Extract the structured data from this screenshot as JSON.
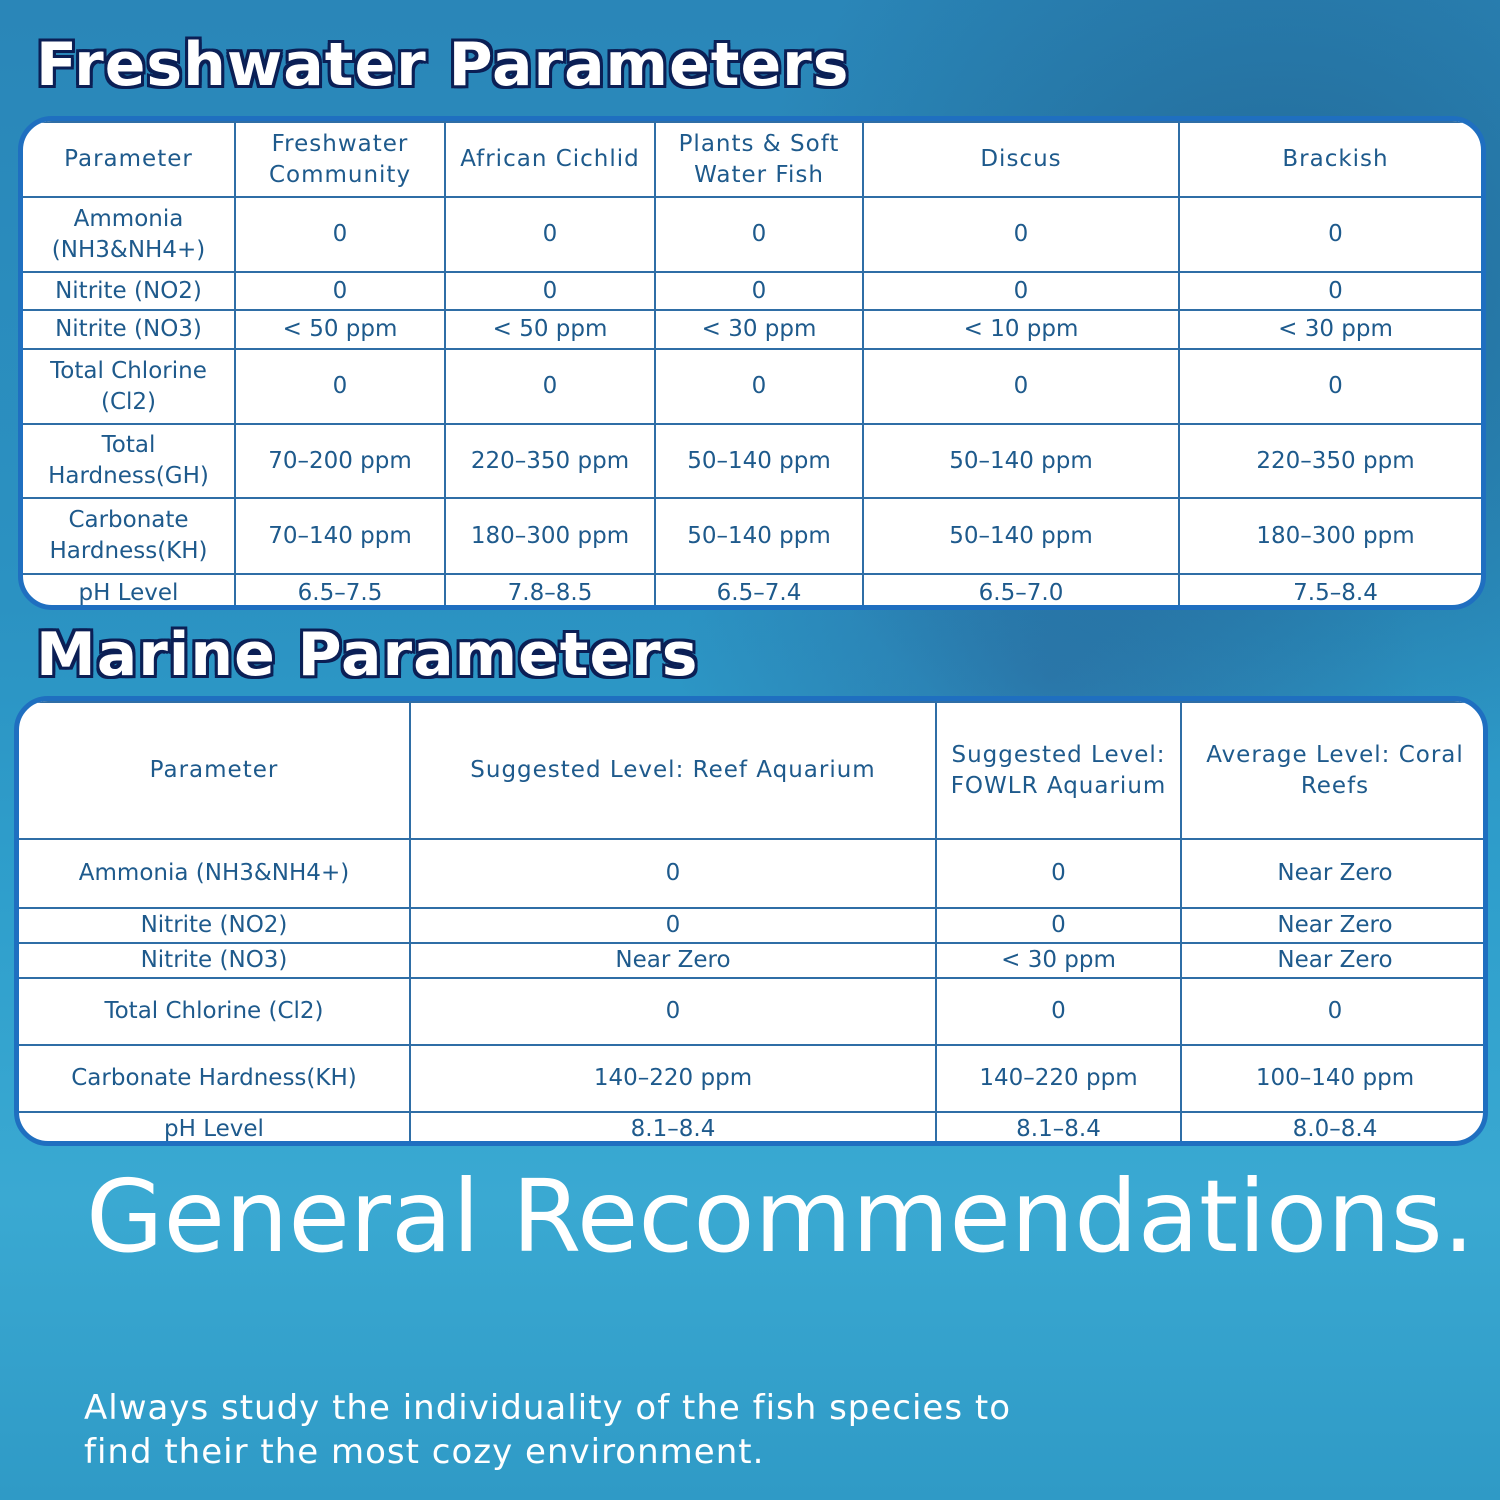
{
  "freshwater": {
    "title": "Freshwater Parameters",
    "headers": [
      "Parameter",
      "Freshwater Community",
      "African Cichlid",
      "Plants & Soft Water Fish",
      "Discus",
      "Brackish"
    ],
    "rows": [
      [
        "Ammonia (NH3&NH4+)",
        "0",
        "0",
        "0",
        "0",
        "0"
      ],
      [
        "Nitrite (NO2)",
        "0",
        "0",
        "0",
        "0",
        "0"
      ],
      [
        "Nitrite (NO3)",
        "< 50 ppm",
        "< 50 ppm",
        "< 30 ppm",
        "< 10 ppm",
        "< 30 ppm"
      ],
      [
        "Total Chlorine (Cl2)",
        "0",
        "0",
        "0",
        "0",
        "0"
      ],
      [
        "Total Hardness(GH)",
        "70–200 ppm",
        "220–350 ppm",
        "50–140 ppm",
        "50–140 ppm",
        "220–350 ppm"
      ],
      [
        "Carbonate Hardness(KH)",
        "70–140 ppm",
        "180–300 ppm",
        "50–140 ppm",
        "50–140 ppm",
        "180–300 ppm"
      ],
      [
        "pH Level",
        "6.5–7.5",
        "7.8–8.5",
        "6.5–7.4",
        "6.5–7.0",
        "7.5–8.4"
      ]
    ]
  },
  "marine": {
    "title": "Marine Parameters",
    "headers": [
      "Parameter",
      "Suggested Level: Reef Aquarium",
      "Suggested Level: FOWLR Aquarium",
      "Average Level: Coral Reefs"
    ],
    "rows": [
      [
        "Ammonia (NH3&NH4+)",
        "0",
        "0",
        "Near Zero"
      ],
      [
        "Nitrite (NO2)",
        "0",
        "0",
        "Near Zero"
      ],
      [
        "Nitrite (NO3)",
        "Near Zero",
        "< 30 ppm",
        "Near Zero"
      ],
      [
        "Total Chlorine (Cl2)",
        "0",
        "0",
        "0"
      ],
      [
        "Carbonate Hardness(KH)",
        "140–220 ppm",
        "140–220 ppm",
        "100–140 ppm"
      ],
      [
        "pH Level",
        "8.1–8.4",
        "8.1–8.4",
        "8.0–8.4"
      ]
    ]
  },
  "general": {
    "title": "General Recommendations.",
    "text": "Always study the individuality of the fish species to find their the most cozy environment."
  }
}
